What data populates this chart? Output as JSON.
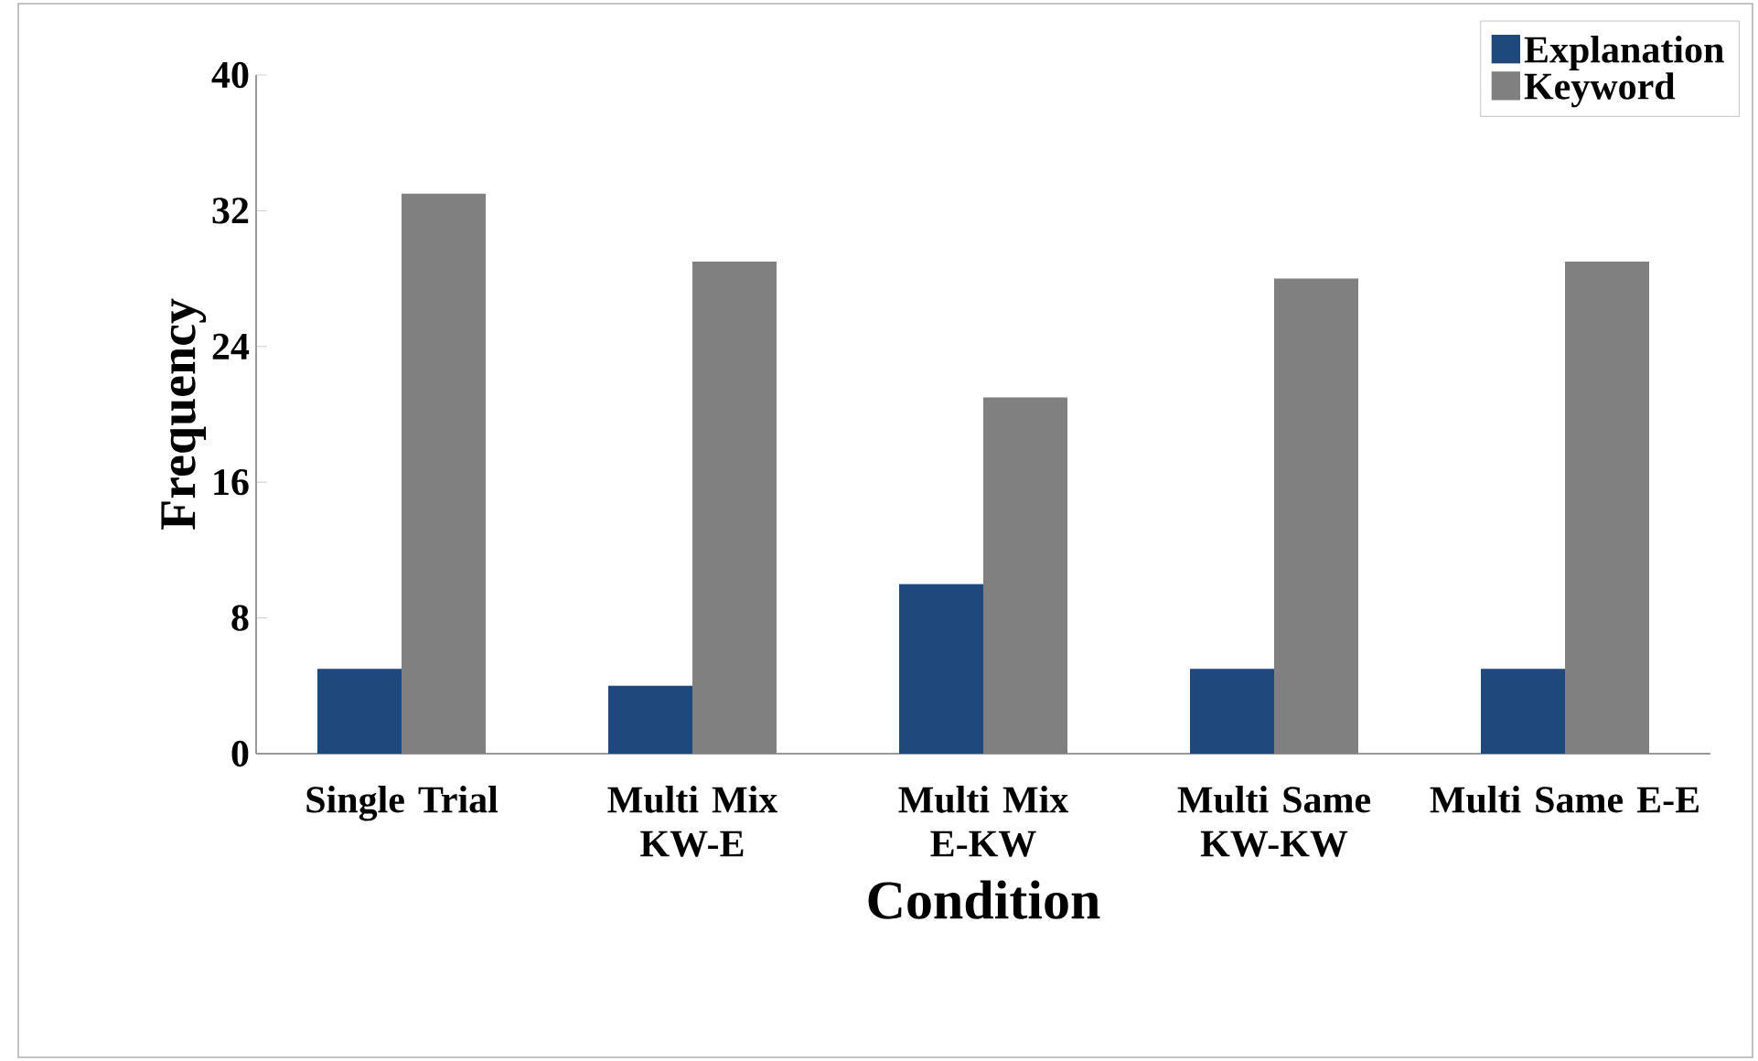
{
  "chart_data": {
    "type": "bar",
    "xlabel": "Condition",
    "ylabel": "Frequency",
    "categories": [
      "Single Trial",
      "Multi Mix KW-E",
      "Multi Mix E-KW",
      "Multi Same KW-KW",
      "Multi Same E-E"
    ],
    "series": [
      {
        "name": "Explanation",
        "color": "#1f497d",
        "values": [
          5,
          4,
          10,
          5,
          5
        ]
      },
      {
        "name": "Keyword",
        "color": "#808080",
        "values": [
          33,
          29,
          21,
          28,
          29
        ]
      }
    ],
    "ylim": [
      0,
      40
    ],
    "yticks": [
      0,
      8,
      16,
      24,
      32,
      40
    ],
    "grid": false,
    "legend": "top right"
  }
}
